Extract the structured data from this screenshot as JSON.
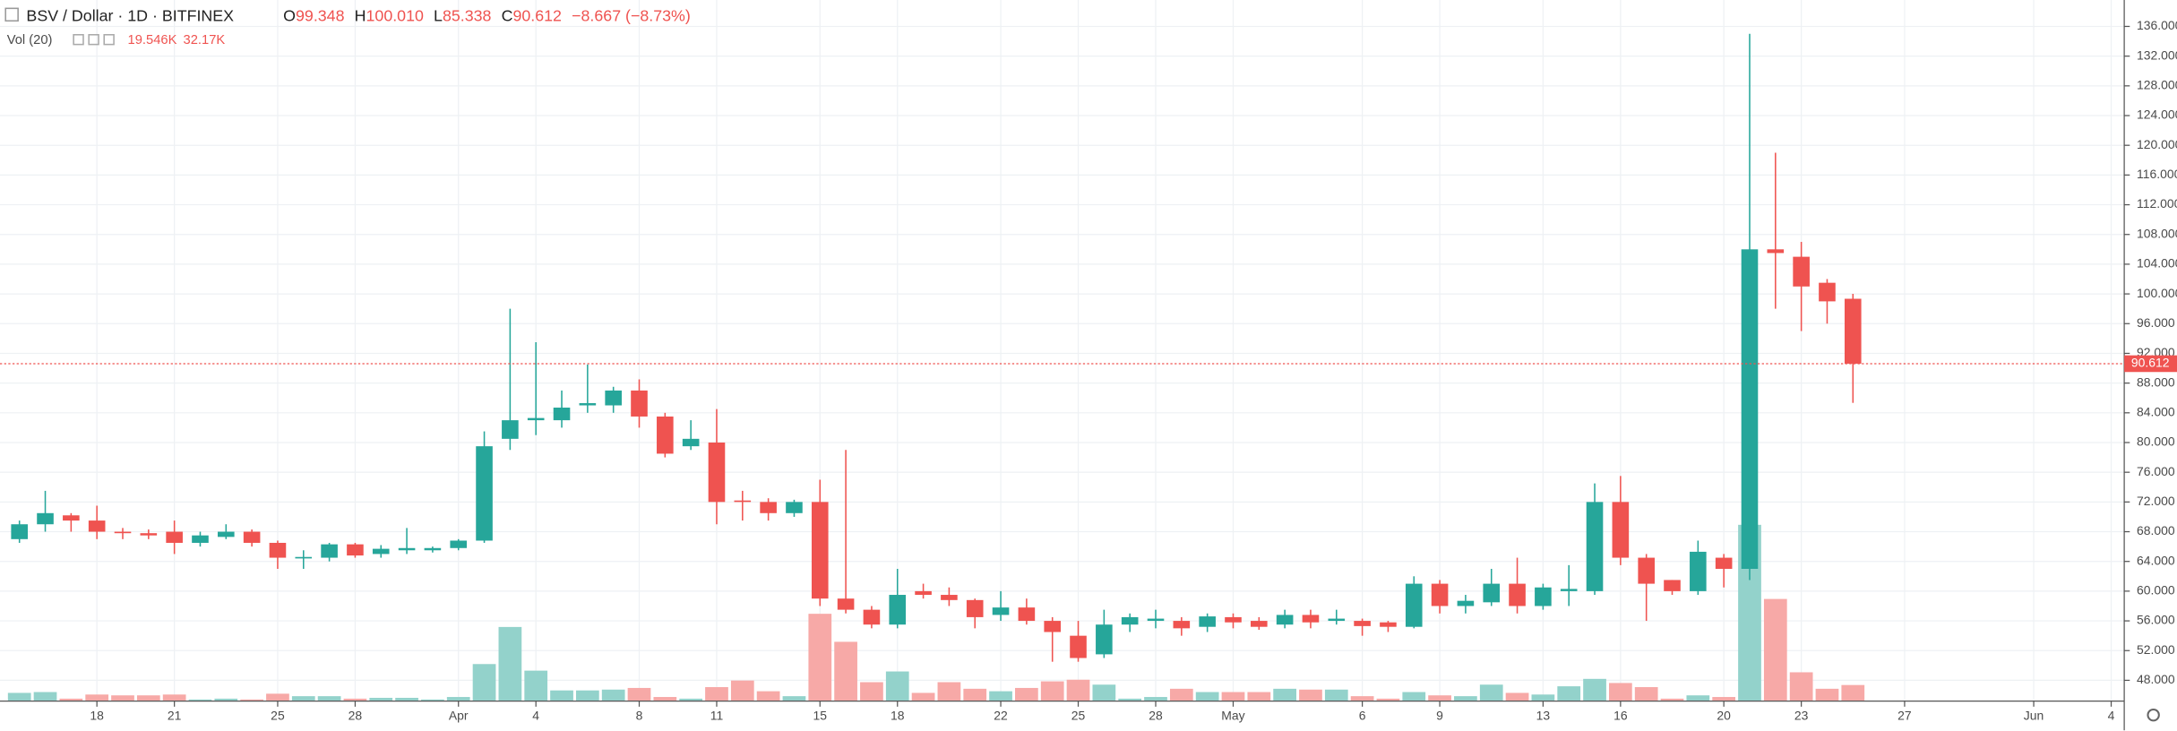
{
  "header": {
    "symbol": "BSV / Dollar · 1D · BITFINEX",
    "o_key": "O",
    "o": "99.348",
    "h_key": "H",
    "h": "100.010",
    "l_key": "L",
    "l": "85.338",
    "c_key": "C",
    "c": "90.612",
    "change": "−8.667 (−8.73%)",
    "vol_label": "Vol (20)",
    "vol_value": "19.546K",
    "vol_ma": "32.17K"
  },
  "chart_data": {
    "type": "candlestick",
    "categories": [
      null,
      null,
      null,
      "18",
      null,
      null,
      "21",
      null,
      null,
      null,
      "25",
      null,
      null,
      "28",
      null,
      null,
      null,
      "Apr",
      null,
      null,
      "4",
      null,
      null,
      null,
      "8",
      null,
      null,
      "11",
      null,
      null,
      null,
      "15",
      null,
      null,
      "18",
      null,
      null,
      null,
      "22",
      null,
      null,
      "25",
      null,
      null,
      "28",
      null,
      null,
      "May",
      null,
      null,
      null,
      null,
      "6",
      null,
      null,
      "9",
      null,
      null,
      null,
      "13",
      null,
      null,
      "16",
      null,
      null,
      null,
      "20",
      null,
      null,
      "23",
      null,
      null,
      null,
      "27",
      null,
      null,
      null,
      null,
      "Jun",
      null,
      null,
      "4"
    ],
    "open": [
      67,
      69,
      70.2,
      69.5,
      68,
      67.8,
      68,
      66.5,
      67.3,
      68,
      66.5,
      64.4,
      64.5,
      66.3,
      65,
      65.5,
      65.5,
      65.8,
      66.8,
      80.5,
      83,
      83,
      85,
      85,
      87,
      83.5,
      79.5,
      80,
      72.2,
      72,
      70.5,
      72,
      59,
      57.5,
      55.5,
      60,
      59.5,
      58.8,
      56.8,
      57.8,
      56,
      54,
      51.5,
      55.5,
      56,
      56,
      55.2,
      56.5,
      56,
      55.5,
      56.8,
      56,
      56,
      55.8,
      55.2,
      61,
      58,
      58.5,
      61,
      58,
      60,
      60,
      72,
      64.5,
      61.5,
      60,
      64.5,
      63,
      106,
      105,
      101.5,
      99.348,
      null,
      null,
      null,
      null,
      null,
      null,
      null,
      null,
      null,
      null
    ],
    "high": [
      69.5,
      73.5,
      70.5,
      71.5,
      68.5,
      68.3,
      69.5,
      68,
      69,
      68.3,
      66.8,
      65.5,
      66.5,
      66.5,
      66.2,
      68.5,
      66,
      67,
      81.5,
      98,
      93.5,
      87,
      90.5,
      87.5,
      88.5,
      84,
      83,
      84.5,
      73.5,
      72.5,
      72.3,
      75,
      79,
      58,
      63,
      61,
      60.5,
      59,
      60,
      59,
      56.5,
      56,
      57.5,
      57,
      57.5,
      56.5,
      57,
      57,
      56.5,
      57.5,
      57.5,
      57.5,
      56.3,
      56,
      62,
      61.5,
      59.5,
      63,
      64.5,
      61,
      63.5,
      74.5,
      75.5,
      65,
      61.5,
      66.8,
      65,
      135,
      119,
      107,
      102,
      100.01,
      null,
      null,
      null,
      null,
      null,
      null,
      null,
      null,
      null,
      null
    ],
    "low": [
      66.5,
      68,
      68,
      67,
      67,
      67,
      65,
      66,
      67,
      66,
      63,
      63,
      64,
      64.5,
      64.5,
      65,
      65.2,
      65.5,
      66.5,
      79,
      81,
      82,
      84,
      84,
      82,
      78,
      79,
      69,
      69.5,
      69.5,
      70,
      58,
      57,
      55,
      55,
      59,
      58,
      55,
      56,
      55.5,
      50.5,
      50.5,
      51,
      54.5,
      55,
      54,
      54.5,
      55,
      54.8,
      55,
      55,
      55.5,
      54,
      54.5,
      55,
      57,
      57,
      58,
      57,
      57.5,
      58,
      59.5,
      63.5,
      56,
      59.5,
      59.5,
      60.5,
      61.5,
      98,
      95,
      96,
      85.338,
      null,
      null,
      null,
      null,
      null,
      null,
      null,
      null,
      null,
      null
    ],
    "close": [
      69,
      70.5,
      69.5,
      68,
      67.8,
      67.5,
      66.5,
      67.5,
      68,
      66.5,
      64.5,
      64.6,
      66.3,
      64.8,
      65.7,
      65.8,
      65.8,
      66.8,
      79.5,
      83,
      83.3,
      84.7,
      85.3,
      87,
      83.5,
      78.5,
      80.5,
      72,
      72,
      70.5,
      72,
      59,
      57.5,
      55.5,
      59.5,
      59.5,
      58.8,
      56.5,
      57.8,
      56,
      54.5,
      51,
      55.5,
      56.5,
      56.3,
      55,
      56.6,
      55.8,
      55.2,
      56.8,
      55.8,
      56.3,
      55.3,
      55.2,
      61,
      58,
      58.7,
      61,
      58,
      60.5,
      60.3,
      72,
      64.5,
      61,
      60,
      65.3,
      63,
      106,
      105.5,
      101,
      99,
      90.612,
      null,
      null,
      null,
      null,
      null,
      null,
      null,
      null,
      null,
      null
    ],
    "volume": [
      10,
      11,
      3,
      8,
      7,
      7,
      8,
      2,
      3,
      2,
      9,
      6,
      6,
      3,
      4,
      4,
      2,
      5,
      45,
      90,
      37,
      13,
      13,
      14,
      16,
      5,
      3,
      17,
      25,
      12,
      6,
      106,
      72,
      23,
      36,
      10,
      23,
      15,
      12,
      16,
      24,
      26,
      20,
      3,
      5,
      15,
      11,
      11,
      11,
      15,
      14,
      14,
      6,
      3,
      11,
      7,
      6,
      20,
      10,
      8,
      18,
      27,
      22,
      17,
      3,
      7,
      5,
      214,
      124,
      35,
      15,
      19.546,
      null,
      null,
      null,
      null,
      null,
      null,
      null,
      null,
      null,
      null
    ],
    "up_color": "#26a69a",
    "down_color": "#ef5350",
    "up_volume_color": "#93d2cb",
    "down_volume_color": "#f7a9a7",
    "ylim": [
      45.2,
      139.55
    ],
    "yticks": [
      {
        "value": 48,
        "label": "48.000"
      },
      {
        "value": 52,
        "label": "52.000"
      },
      {
        "value": 56,
        "label": "56.000"
      },
      {
        "value": 60,
        "label": "60.000"
      },
      {
        "value": 64,
        "label": "64.000"
      },
      {
        "value": 68,
        "label": "68.000"
      },
      {
        "value": 72,
        "label": "72.000"
      },
      {
        "value": 76,
        "label": "76.000"
      },
      {
        "value": 80,
        "label": "80.000"
      },
      {
        "value": 84,
        "label": "84.000"
      },
      {
        "value": 88,
        "label": "88.000"
      },
      {
        "value": 92,
        "label": "92.000"
      },
      {
        "value": 96,
        "label": "96.000"
      },
      {
        "value": 100,
        "label": "100.000"
      },
      {
        "value": 104,
        "label": "104.000"
      },
      {
        "value": 108,
        "label": "108.000"
      },
      {
        "value": 112,
        "label": "112.000"
      },
      {
        "value": 116,
        "label": "116.000"
      },
      {
        "value": 120,
        "label": "120.000"
      },
      {
        "value": 124,
        "label": "124.000"
      },
      {
        "value": 128,
        "label": "128.000"
      },
      {
        "value": 132,
        "label": "132.000"
      },
      {
        "value": 136,
        "label": "136.000"
      }
    ],
    "grid": true
  }
}
